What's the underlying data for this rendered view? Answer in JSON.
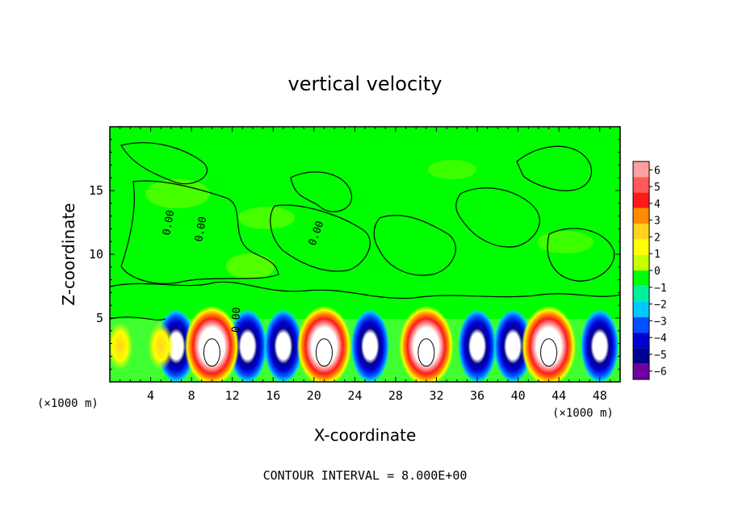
{
  "chart_data": {
    "type": "heatmap",
    "title": "vertical velocity",
    "xlabel": "X-coordinate",
    "ylabel": "Z-coordinate",
    "x_unit_left": "(×1000 m)",
    "x_unit_right": "(×1000 m)",
    "footer": "CONTOUR INTERVAL = 8.000E+00",
    "xlim": [
      0,
      50
    ],
    "ylim": [
      0,
      20
    ],
    "x_ticks": [
      4,
      8,
      12,
      16,
      20,
      24,
      28,
      32,
      36,
      40,
      44,
      48
    ],
    "y_ticks": [
      5,
      10,
      15
    ],
    "contour_label": "0.00",
    "colorbar": {
      "levels": [
        "6",
        "5",
        "4",
        "3",
        "2",
        "1",
        "0",
        "−1",
        "−2",
        "−3",
        "−4",
        "−5",
        "−6"
      ],
      "colors": [
        "#ffa0a0",
        "#ff5a5a",
        "#ff1a1a",
        "#ff8c00",
        "#ffd21e",
        "#ffff00",
        "#c8ff00",
        "#00ff00",
        "#00f0a0",
        "#00c8ff",
        "#0050ff",
        "#0000d2",
        "#000090",
        "#7000a0"
      ]
    },
    "updrafts": [
      {
        "x": 1,
        "w": 3
      },
      {
        "x": 10,
        "w": 9
      },
      {
        "x": 21,
        "w": 9
      },
      {
        "x": 31,
        "w": 9
      },
      {
        "x": 43,
        "w": 8
      },
      {
        "x": 5,
        "w": 2
      }
    ],
    "downdrafts": [
      {
        "x": 6.5,
        "w": -7
      },
      {
        "x": 13.5,
        "w": -7
      },
      {
        "x": 17,
        "w": -7
      },
      {
        "x": 25.5,
        "w": -7
      },
      {
        "x": 36,
        "w": -7
      },
      {
        "x": 39.5,
        "w": -6
      },
      {
        "x": 48,
        "w": -7
      }
    ]
  }
}
